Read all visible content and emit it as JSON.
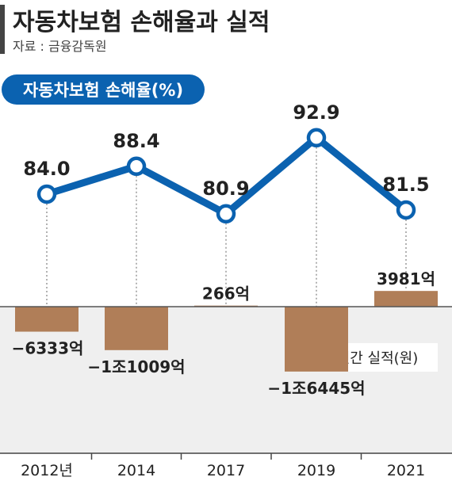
{
  "chart_data": {
    "type": "line+bar",
    "title": "자동차보험 손해율과 실적",
    "source": "자료 : 금융감독원",
    "categories": [
      "2012년",
      "2014",
      "2017",
      "2019",
      "2021"
    ],
    "line_series": {
      "name": "자동차보험 손해율(%)",
      "values": [
        84.0,
        88.4,
        80.9,
        92.9,
        81.5
      ],
      "labels": [
        "84.0",
        "88.4",
        "80.9",
        "92.9",
        "81.5"
      ]
    },
    "bar_series": {
      "name": "연간 실적(원)",
      "values": [
        -6333,
        -11009,
        266,
        -16445,
        3981
      ],
      "labels": [
        "−6333억",
        "−1조1009억",
        "266억",
        "−1조6445억",
        "3981억"
      ]
    },
    "colors": {
      "line": "#0b62b0",
      "marker_fill": "#ffffff",
      "bar": "#b07e58",
      "negative_area": "#efefef",
      "text": "#222222",
      "badge_bg": "#0b62b0",
      "badge_text": "#ffffff",
      "title_bar": "#444444"
    }
  }
}
